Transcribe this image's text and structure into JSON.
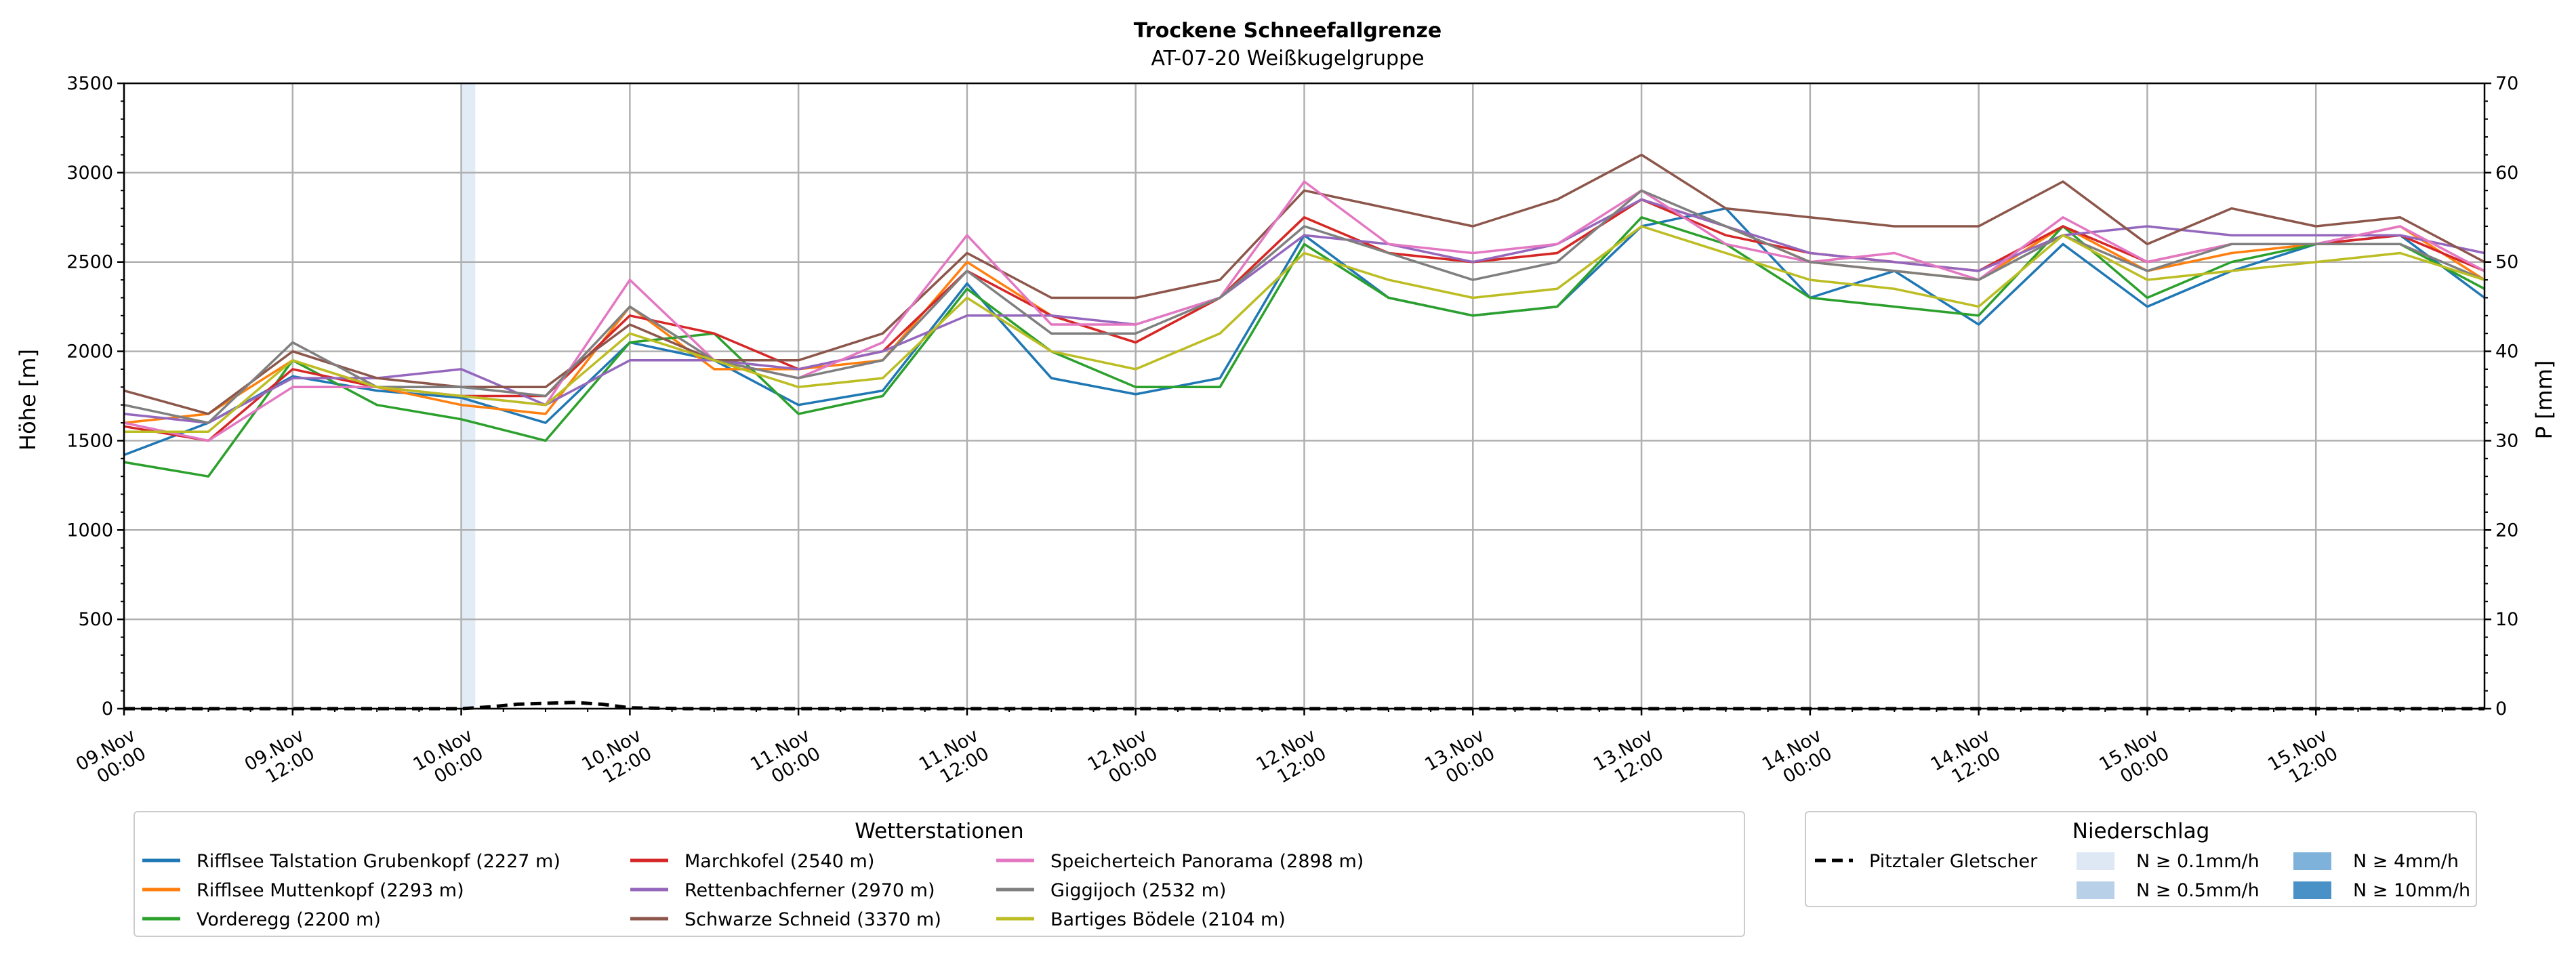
{
  "chart_data": {
    "type": "line",
    "title": "Trockene Schneefallgrenze",
    "subtitle": "AT-07-20 Weißkugelgruppe",
    "ylabel": "Höhe [m]",
    "y2label": "P [mm]",
    "ylim": [
      0,
      3500
    ],
    "y2lim": [
      0,
      70
    ],
    "yticks": [
      "0",
      "500",
      "1000",
      "1500",
      "2000",
      "2500",
      "3000",
      "3500"
    ],
    "y2ticks": [
      "0",
      "10",
      "20",
      "30",
      "40",
      "50",
      "60",
      "70"
    ],
    "x_range_hours": [
      0,
      168
    ],
    "x_ticks": [
      {
        "line1": "09.Nov",
        "line2": "00:00"
      },
      {
        "line1": "09.Nov",
        "line2": "12:00"
      },
      {
        "line1": "10.Nov",
        "line2": "00:00"
      },
      {
        "line1": "10.Nov",
        "line2": "12:00"
      },
      {
        "line1": "11.Nov",
        "line2": "00:00"
      },
      {
        "line1": "11.Nov",
        "line2": "12:00"
      },
      {
        "line1": "12.Nov",
        "line2": "00:00"
      },
      {
        "line1": "12.Nov",
        "line2": "12:00"
      },
      {
        "line1": "13.Nov",
        "line2": "00:00"
      },
      {
        "line1": "13.Nov",
        "line2": "12:00"
      },
      {
        "line1": "14.Nov",
        "line2": "00:00"
      },
      {
        "line1": "14.Nov",
        "line2": "12:00"
      },
      {
        "line1": "15.Nov",
        "line2": "00:00"
      },
      {
        "line1": "15.Nov",
        "line2": "12:00"
      }
    ],
    "grid": true,
    "series_x_hours": [
      0,
      6,
      12,
      18,
      24,
      30,
      36,
      42,
      48,
      54,
      60,
      66,
      72,
      78,
      84,
      90,
      96,
      102,
      108,
      114,
      120,
      126,
      132,
      138,
      144,
      150,
      156,
      162,
      168
    ],
    "series": [
      {
        "name": "Rifflsee Talstation Grubenkopf (2227 m)",
        "color": "#1f77b4",
        "values": [
          1420,
          1600,
          1860,
          1780,
          1740,
          1600,
          2050,
          1950,
          1700,
          1780,
          2380,
          1850,
          1760,
          1850,
          2650,
          2300,
          2200,
          2250,
          2700,
          2800,
          2300,
          2450,
          2150,
          2600,
          2250,
          2450,
          2600,
          2650,
          2300
        ]
      },
      {
        "name": "Rifflsee Muttenkopf (2293 m)",
        "color": "#ff7f0e",
        "values": [
          1600,
          1650,
          1950,
          1800,
          1700,
          1650,
          2250,
          1900,
          1900,
          1950,
          2500,
          2200,
          2050,
          2300,
          2750,
          2550,
          2500,
          2550,
          2850,
          2700,
          2500,
          2450,
          2400,
          2700,
          2450,
          2550,
          2600,
          2700,
          2400
        ]
      },
      {
        "name": "Vorderegg (2200 m)",
        "color": "#2ca02c",
        "values": [
          1380,
          1300,
          1950,
          1700,
          1620,
          1500,
          2050,
          2100,
          1650,
          1750,
          2350,
          2000,
          1800,
          1800,
          2600,
          2300,
          2200,
          2250,
          2750,
          2600,
          2300,
          2250,
          2200,
          2700,
          2300,
          2500,
          2600,
          2600,
          2350
        ]
      },
      {
        "name": "Marchkofel (2540 m)",
        "color": "#d62728",
        "values": [
          1580,
          1500,
          1900,
          1800,
          1750,
          1750,
          2200,
          2100,
          1900,
          2000,
          2450,
          2200,
          2050,
          2300,
          2750,
          2550,
          2500,
          2550,
          2850,
          2650,
          2550,
          2500,
          2450,
          2700,
          2500,
          2600,
          2600,
          2650,
          2450
        ]
      },
      {
        "name": "Rettenbachferner (2970 m)",
        "color": "#9467bd",
        "values": [
          1650,
          1600,
          1850,
          1850,
          1900,
          1700,
          1950,
          1950,
          1900,
          2000,
          2200,
          2200,
          2150,
          2300,
          2650,
          2600,
          2500,
          2600,
          2850,
          2700,
          2550,
          2500,
          2450,
          2650,
          2700,
          2650,
          2650,
          2650,
          2550
        ]
      },
      {
        "name": "Schwarze Schneid (3370 m)",
        "color": "#8c564b",
        "values": [
          1780,
          1650,
          2000,
          1850,
          1800,
          1800,
          2150,
          1950,
          1950,
          2100,
          2550,
          2300,
          2300,
          2400,
          2900,
          2800,
          2700,
          2850,
          3100,
          2800,
          2750,
          2700,
          2700,
          2950,
          2600,
          2800,
          2700,
          2750,
          2500
        ]
      },
      {
        "name": "Speicherteich Panorama (2898 m)",
        "color": "#e377c2",
        "values": [
          1600,
          1500,
          1800,
          1800,
          1750,
          1700,
          2400,
          1950,
          1850,
          2050,
          2650,
          2150,
          2150,
          2300,
          2950,
          2600,
          2550,
          2600,
          2900,
          2600,
          2500,
          2550,
          2400,
          2750,
          2500,
          2600,
          2600,
          2700,
          2450
        ]
      },
      {
        "name": "Giggijoch (2532 m)",
        "color": "#7f7f7f",
        "values": [
          1700,
          1600,
          2050,
          1800,
          1800,
          1750,
          2250,
          1950,
          1850,
          1950,
          2450,
          2100,
          2100,
          2300,
          2700,
          2550,
          2400,
          2500,
          2900,
          2700,
          2500,
          2450,
          2400,
          2650,
          2450,
          2600,
          2600,
          2600,
          2400
        ]
      },
      {
        "name": "Bartiges Bödele (2104 m)",
        "color": "#bcbd22",
        "values": [
          1550,
          1550,
          1950,
          1800,
          1750,
          1700,
          2100,
          1950,
          1800,
          1850,
          2300,
          2000,
          1900,
          2100,
          2550,
          2400,
          2300,
          2350,
          2700,
          2550,
          2400,
          2350,
          2250,
          2650,
          2400,
          2450,
          2500,
          2550,
          2400
        ]
      }
    ],
    "precipitation": {
      "name": "Pitztaler Gletscher",
      "color": "#000000",
      "x_hours": [
        0,
        24,
        26,
        28,
        30,
        32,
        34,
        36,
        40,
        168
      ],
      "values": [
        0,
        0,
        0.2,
        0.5,
        0.6,
        0.7,
        0.5,
        0.1,
        0,
        0
      ]
    },
    "precip_shading": [
      {
        "x_start_hours": 24.0,
        "x_end_hours": 25.0,
        "color": "#d6e4f3"
      }
    ],
    "legend_stations_title": "Wetterstationen",
    "legend_precip_title": "Niederschlag",
    "precip_classes": [
      {
        "label": "N ≥ 0.1mm/h",
        "color": "#dde8f4"
      },
      {
        "label": "N ≥ 0.5mm/h",
        "color": "#b9d1e8"
      },
      {
        "label": "N ≥ 4mm/h",
        "color": "#7fb2da"
      },
      {
        "label": "N ≥ 10mm/h",
        "color": "#4a91c7"
      }
    ]
  }
}
